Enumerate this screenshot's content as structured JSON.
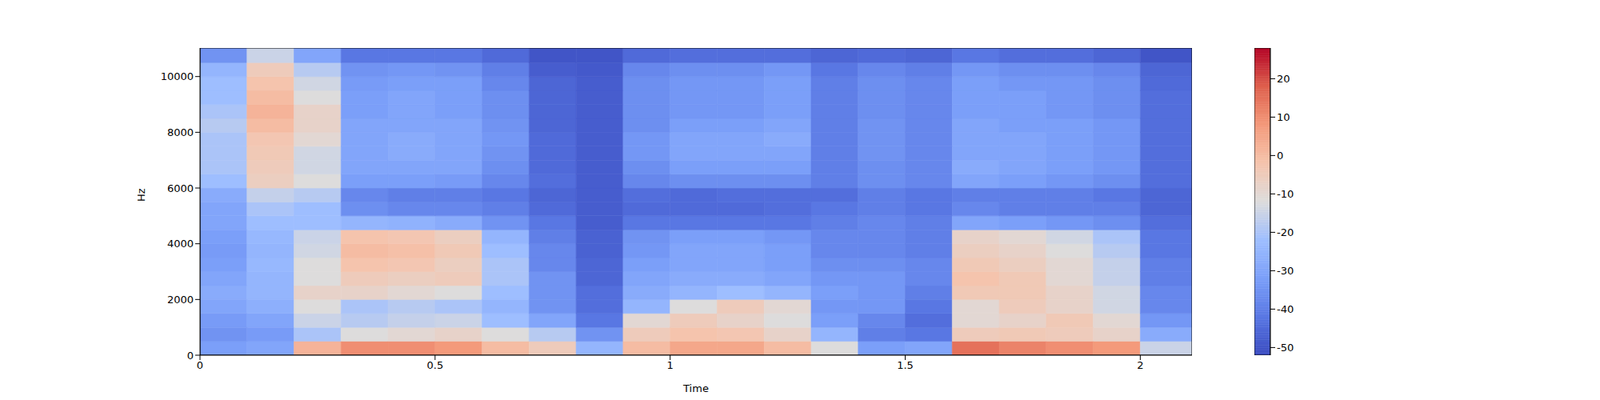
{
  "chart_data": {
    "type": "heatmap",
    "xlabel": "Time",
    "ylabel": "Hz",
    "xlim": [
      0,
      2.11
    ],
    "ylim": [
      0,
      11025
    ],
    "xticks": [
      0,
      0.5,
      1,
      1.5,
      2
    ],
    "yticks": [
      0,
      2000,
      4000,
      6000,
      8000,
      10000
    ],
    "x_bins": [
      0,
      0.1,
      0.2,
      0.3,
      0.4,
      0.5,
      0.6,
      0.7,
      0.8,
      0.9,
      1.0,
      1.1,
      1.2,
      1.3,
      1.4,
      1.5,
      1.6,
      1.7,
      1.8,
      1.9,
      2.0,
      2.11
    ],
    "y_bins": [
      0,
      500,
      1000,
      1500,
      2000,
      2500,
      3000,
      3500,
      4000,
      4500,
      5000,
      5500,
      6000,
      6500,
      7000,
      7500,
      8000,
      8500,
      9000,
      9500,
      10000,
      10500,
      11025
    ],
    "cells": [
      [
        -32,
        -35,
        -33,
        -30,
        -28,
        -30,
        -32,
        -33,
        -32,
        -30,
        -30,
        -28,
        -22,
        -20,
        -20,
        -20,
        -18,
        -20,
        -22,
        -22,
        -25,
        -35
      ],
      [
        -30,
        -33,
        -30,
        -27,
        -25,
        -25,
        -24,
        -25,
        -24,
        -22,
        -20,
        -16,
        -6,
        -5,
        -4,
        -3,
        0,
        2,
        0,
        -2,
        -5,
        -15
      ],
      [
        2,
        -20,
        -15,
        -12,
        -8,
        -12,
        -12,
        -14,
        -15,
        -22,
        -22,
        -18,
        -12,
        -14,
        -14,
        -10,
        -8,
        -8,
        -12,
        -14,
        -18,
        -30
      ],
      [
        10,
        -12,
        -18,
        -20,
        -8,
        -5,
        -2,
        0,
        -2,
        -25,
        -36,
        -38,
        -32,
        -30,
        -30,
        -30,
        -30,
        -32,
        -32,
        -33,
        -35,
        -42
      ],
      [
        10,
        -10,
        -16,
        -18,
        -10,
        -6,
        -3,
        -1,
        -3,
        -26,
        -38,
        -40,
        -32,
        -30,
        -28,
        -28,
        -30,
        -30,
        -30,
        -32,
        -34,
        -42
      ],
      [
        8,
        -8,
        -15,
        -20,
        -12,
        -5,
        -6,
        -4,
        -6,
        -28,
        -38,
        -40,
        -33,
        -30,
        -30,
        -30,
        -30,
        -32,
        -32,
        -32,
        -35,
        -42
      ],
      [
        0,
        -12,
        -22,
        -25,
        -22,
        -20,
        -20,
        -22,
        -25,
        -35,
        -40,
        -42,
        -38,
        -36,
        -35,
        -34,
        -35,
        -36,
        -36,
        -38,
        -40,
        -45
      ],
      [
        -5,
        -18,
        -30,
        -35,
        -35,
        -35,
        -38,
        -38,
        -40,
        -42,
        -45,
        -46,
        -44,
        -45,
        -45,
        -45,
        -46,
        -46,
        -46,
        -46,
        -48,
        -50
      ],
      [
        -25,
        -35,
        -42,
        -44,
        -44,
        -46,
        -46,
        -47,
        -47,
        -48,
        -48,
        -48,
        -48,
        -48,
        -48,
        -48,
        -48,
        -48,
        -48,
        -48,
        -49,
        -50
      ],
      [
        0,
        -5,
        -10,
        -25,
        -28,
        -30,
        -32,
        -34,
        -35,
        -42,
        -45,
        -44,
        -38,
        -36,
        -34,
        -34,
        -36,
        -36,
        -36,
        -36,
        -38,
        -45
      ],
      [
        5,
        -2,
        -5,
        -12,
        -25,
        -28,
        -30,
        -30,
        -32,
        -42,
        -45,
        -45,
        -36,
        -32,
        -30,
        -30,
        -32,
        -34,
        -34,
        -34,
        -36,
        -44
      ],
      [
        5,
        -3,
        -8,
        -5,
        -22,
        -28,
        -30,
        -30,
        -32,
        -42,
        -45,
        -44,
        -36,
        -32,
        -30,
        -30,
        -32,
        -34,
        -34,
        -34,
        -36,
        -44
      ],
      [
        0,
        -8,
        -12,
        -10,
        -25,
        -30,
        -32,
        -32,
        -34,
        -42,
        -44,
        -44,
        -36,
        -32,
        -30,
        -28,
        -30,
        -32,
        -32,
        -32,
        -34,
        -44
      ],
      [
        -12,
        -25,
        -32,
        -34,
        -32,
        -34,
        -36,
        -38,
        -38,
        -40,
        -42,
        -44,
        -40,
        -40,
        -40,
        -40,
        -40,
        -40,
        -40,
        -40,
        -42,
        -46
      ],
      [
        -32,
        -40,
        -38,
        -34,
        -34,
        -34,
        -36,
        -38,
        -38,
        -38,
        -40,
        -40,
        -36,
        -36,
        -35,
        -35,
        -35,
        -36,
        -36,
        -36,
        -38,
        -45
      ],
      [
        -30,
        -42,
        -44,
        -42,
        -40,
        -38,
        -38,
        -40,
        -40,
        -40,
        -42,
        -42,
        -38,
        -38,
        -38,
        -38,
        -38,
        -38,
        -38,
        -38,
        -40,
        -46
      ],
      [
        15,
        -5,
        -10,
        -10,
        -4,
        -2,
        -4,
        -6,
        -8,
        -30,
        -38,
        -40,
        -30,
        -28,
        -30,
        -30,
        -30,
        -32,
        -32,
        -32,
        -34,
        -42
      ],
      [
        12,
        -4,
        -8,
        -5,
        -4,
        -4,
        -6,
        -8,
        -10,
        -32,
        -40,
        -40,
        -32,
        -30,
        -30,
        -30,
        -32,
        -32,
        -32,
        -34,
        -36,
        -44
      ],
      [
        10,
        -5,
        -4,
        -8,
        -8,
        -10,
        -10,
        -12,
        -14,
        -34,
        -40,
        -40,
        -34,
        -32,
        -32,
        -32,
        -32,
        -34,
        -34,
        -34,
        -36,
        -44
      ],
      [
        8,
        -8,
        -10,
        -14,
        -14,
        -16,
        -16,
        -18,
        -20,
        -36,
        -40,
        -42,
        -36,
        -34,
        -34,
        -34,
        -34,
        -36,
        -36,
        -36,
        -38,
        -46
      ],
      [
        -15,
        -28,
        -34,
        -38,
        -38,
        -40,
        -40,
        -42,
        -42,
        -44,
        -46,
        -46,
        -44,
        -44,
        -44,
        -44,
        -44,
        -44,
        -44,
        -45,
        -46,
        -50
      ]
    ],
    "colorbar": {
      "range": [
        -52,
        28
      ],
      "ticks": [
        -50,
        -40,
        -30,
        -20,
        -10,
        0,
        10,
        20
      ]
    }
  }
}
